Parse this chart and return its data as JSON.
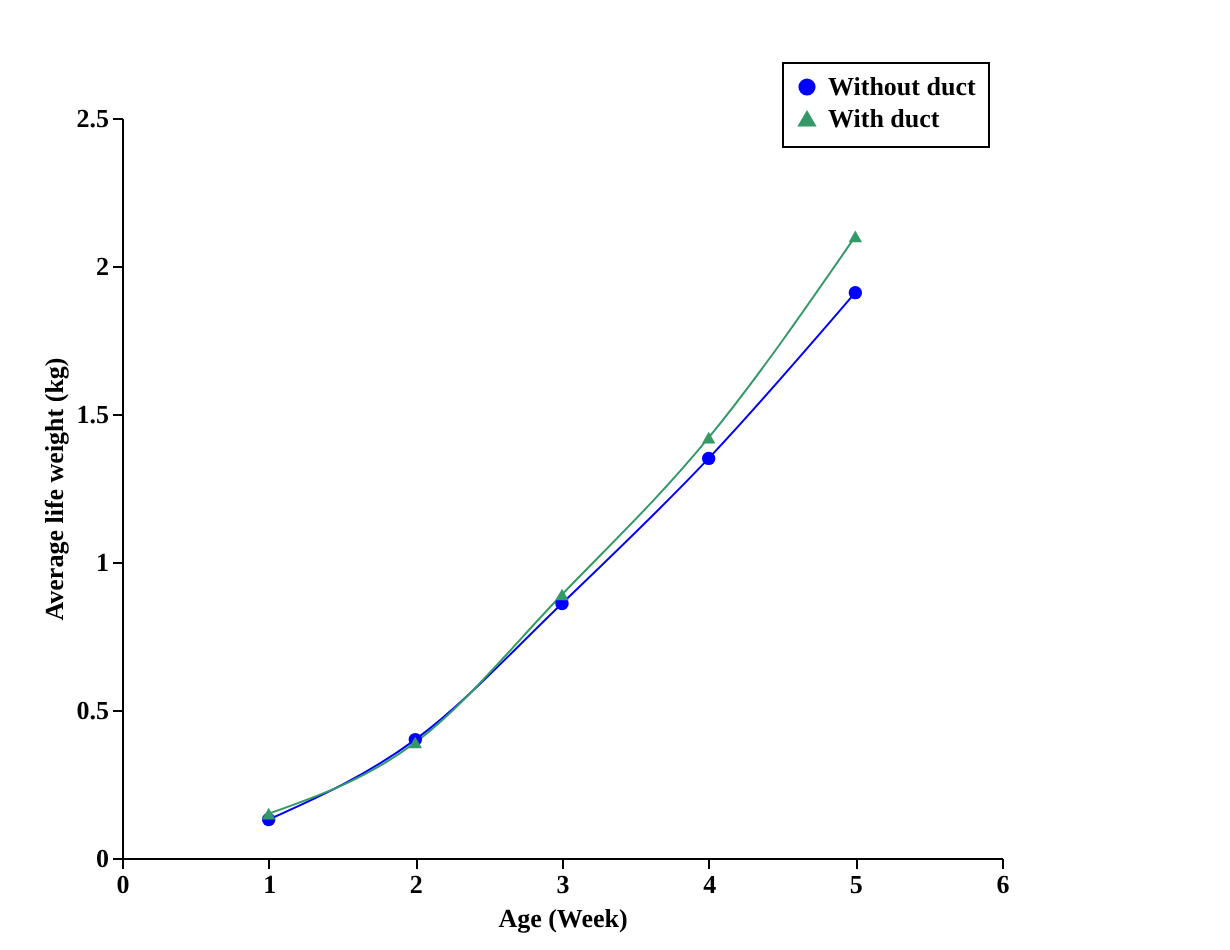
{
  "chart_data": {
    "type": "line",
    "xlabel": "Age (Week)",
    "ylabel": "Average life weight (kg)",
    "x": [
      1,
      2,
      3,
      4,
      5
    ],
    "series": [
      {
        "name": "Without duct",
        "color": "#0000ff",
        "values": [
          0.13,
          0.4,
          0.86,
          1.35,
          1.91
        ],
        "marker": "circle"
      },
      {
        "name": "With duct",
        "color": "#339966",
        "values": [
          0.15,
          0.39,
          0.89,
          1.42,
          2.1
        ],
        "marker": "triangle"
      }
    ],
    "xlim": [
      0,
      6
    ],
    "xticks": [
      0,
      1,
      2,
      3,
      4,
      5,
      6
    ],
    "ylim": [
      0,
      2.5
    ],
    "yticks": [
      0,
      0.5,
      1,
      1.5,
      2,
      2.5
    ],
    "grid": false,
    "legend": "top right",
    "line_style": "solid"
  }
}
